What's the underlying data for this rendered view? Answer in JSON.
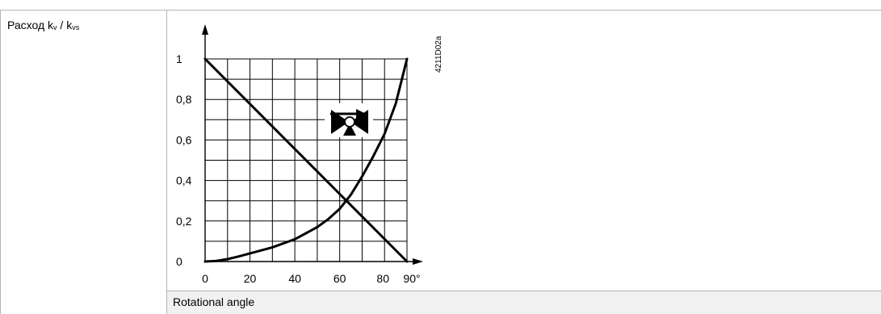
{
  "table": {
    "row_label_main": "Расход k",
    "row_label_sub1": "v",
    "row_label_sep": " / k",
    "row_label_sub2": "vs",
    "footer_label": "Rotational angle"
  },
  "figure_id": "4211D02a",
  "colors": {
    "border": "#b4b4b4",
    "footer_bg": "#f1f1f1",
    "ink": "#000000"
  },
  "icon": "valve-flow-direction-icon",
  "chart_data": {
    "type": "line",
    "title": "",
    "xlabel": "",
    "ylabel": "",
    "xlim": [
      0,
      90
    ],
    "ylim": [
      0,
      1
    ],
    "grid": true,
    "x_tick_labels": [
      {
        "v": 0,
        "label": "0"
      },
      {
        "v": 20,
        "label": "20"
      },
      {
        "v": 40,
        "label": "40"
      },
      {
        "v": 60,
        "label": "60"
      },
      {
        "v": 80,
        "label": "80"
      },
      {
        "v": 90,
        "label": "90°"
      }
    ],
    "y_tick_labels": [
      {
        "v": 0,
        "label": "0"
      },
      {
        "v": 0.2,
        "label": "0,2"
      },
      {
        "v": 0.4,
        "label": "0,4"
      },
      {
        "v": 0.6,
        "label": "0,6"
      },
      {
        "v": 0.8,
        "label": "0,8"
      },
      {
        "v": 1,
        "label": "1"
      }
    ],
    "series": [
      {
        "x": [
          0,
          90
        ],
        "y": [
          1,
          0
        ]
      },
      {
        "x": [
          0,
          5,
          10,
          15,
          20,
          30,
          40,
          50,
          55,
          60,
          65,
          70,
          75,
          80,
          85,
          90
        ],
        "y": [
          0,
          0.003,
          0.012,
          0.025,
          0.04,
          0.07,
          0.11,
          0.17,
          0.21,
          0.26,
          0.33,
          0.42,
          0.52,
          0.63,
          0.78,
          1.0
        ]
      }
    ]
  }
}
